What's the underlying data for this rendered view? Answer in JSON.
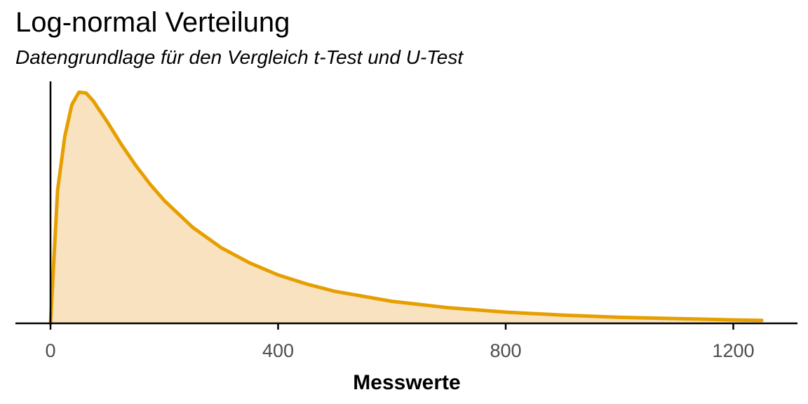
{
  "chart_data": {
    "type": "area",
    "title": "Log-normal Verteilung",
    "subtitle": "Datengrundlage für den Vergleich t-Test und U-Test",
    "xlabel": "Messwerte",
    "ylabel": "",
    "xlim": [
      0,
      1300
    ],
    "ylim": [
      0,
      0.0056
    ],
    "xticks": [
      0,
      400,
      800,
      1200
    ],
    "xtick_labels": [
      "0",
      "400",
      "800",
      "1200"
    ],
    "yticks_shown": false,
    "grid": false,
    "legend": "none",
    "line_color": "#E69F00",
    "fill_color": "#F8E2C0",
    "series": [
      {
        "x": [
          0,
          12.5,
          25,
          37.5,
          50,
          62.5,
          75,
          100,
          125,
          150,
          175,
          200,
          250,
          300,
          350,
          400,
          450,
          500,
          600,
          700,
          800,
          900,
          1000,
          1100,
          1200,
          1250
        ],
        "values": [
          0.0,
          0.00308,
          0.00432,
          0.00506,
          0.00535,
          0.00533,
          0.00515,
          0.00466,
          0.00413,
          0.00365,
          0.00322,
          0.00284,
          0.00222,
          0.00175,
          0.0014,
          0.00112,
          0.00091,
          0.00074,
          0.00051,
          0.00036,
          0.00026,
          0.00019,
          0.00014,
          0.00011,
          8e-05,
          7e-05
        ]
      }
    ]
  }
}
